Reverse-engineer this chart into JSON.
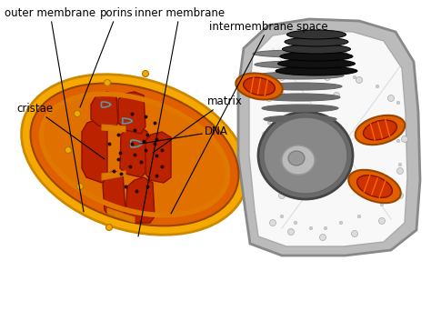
{
  "background_color": "#ffffff",
  "fig_width": 4.74,
  "fig_height": 3.53,
  "dpi": 100,
  "mito_outer_color": "#F5A800",
  "mito_dark_orange": "#E06000",
  "mito_inner_bg": "#E07000",
  "mito_cristae_red": "#BB2200",
  "mito_cristae_edge": "#881100",
  "mito_fold_orange": "#E07800",
  "cell_outer_color": "#CCCCCC",
  "cell_inner_color": "#F5F5F5",
  "nucleus_dark": "#606060",
  "nucleus_mid": "#909090",
  "nucleus_light": "#CCCCCC",
  "er_color": "#888888",
  "golgi_dark": "#222222",
  "golgi_mid": "#444444",
  "mito_sm_outer": "#E06000",
  "mito_sm_inner": "#CC3300",
  "dna_color": "#5599AA",
  "dot_color": "#220000",
  "porin_color": "#F5A800",
  "annotation_color": "#000000",
  "labels": {
    "outer_membrane": "outer membrane",
    "inner_membrane": "inner membrane",
    "intermembrane_space": "intermembrane space",
    "cristae": "cristae",
    "matrix": "matrix",
    "dna": "DNA",
    "porins": "porins"
  },
  "label_fontsize": 8.5
}
